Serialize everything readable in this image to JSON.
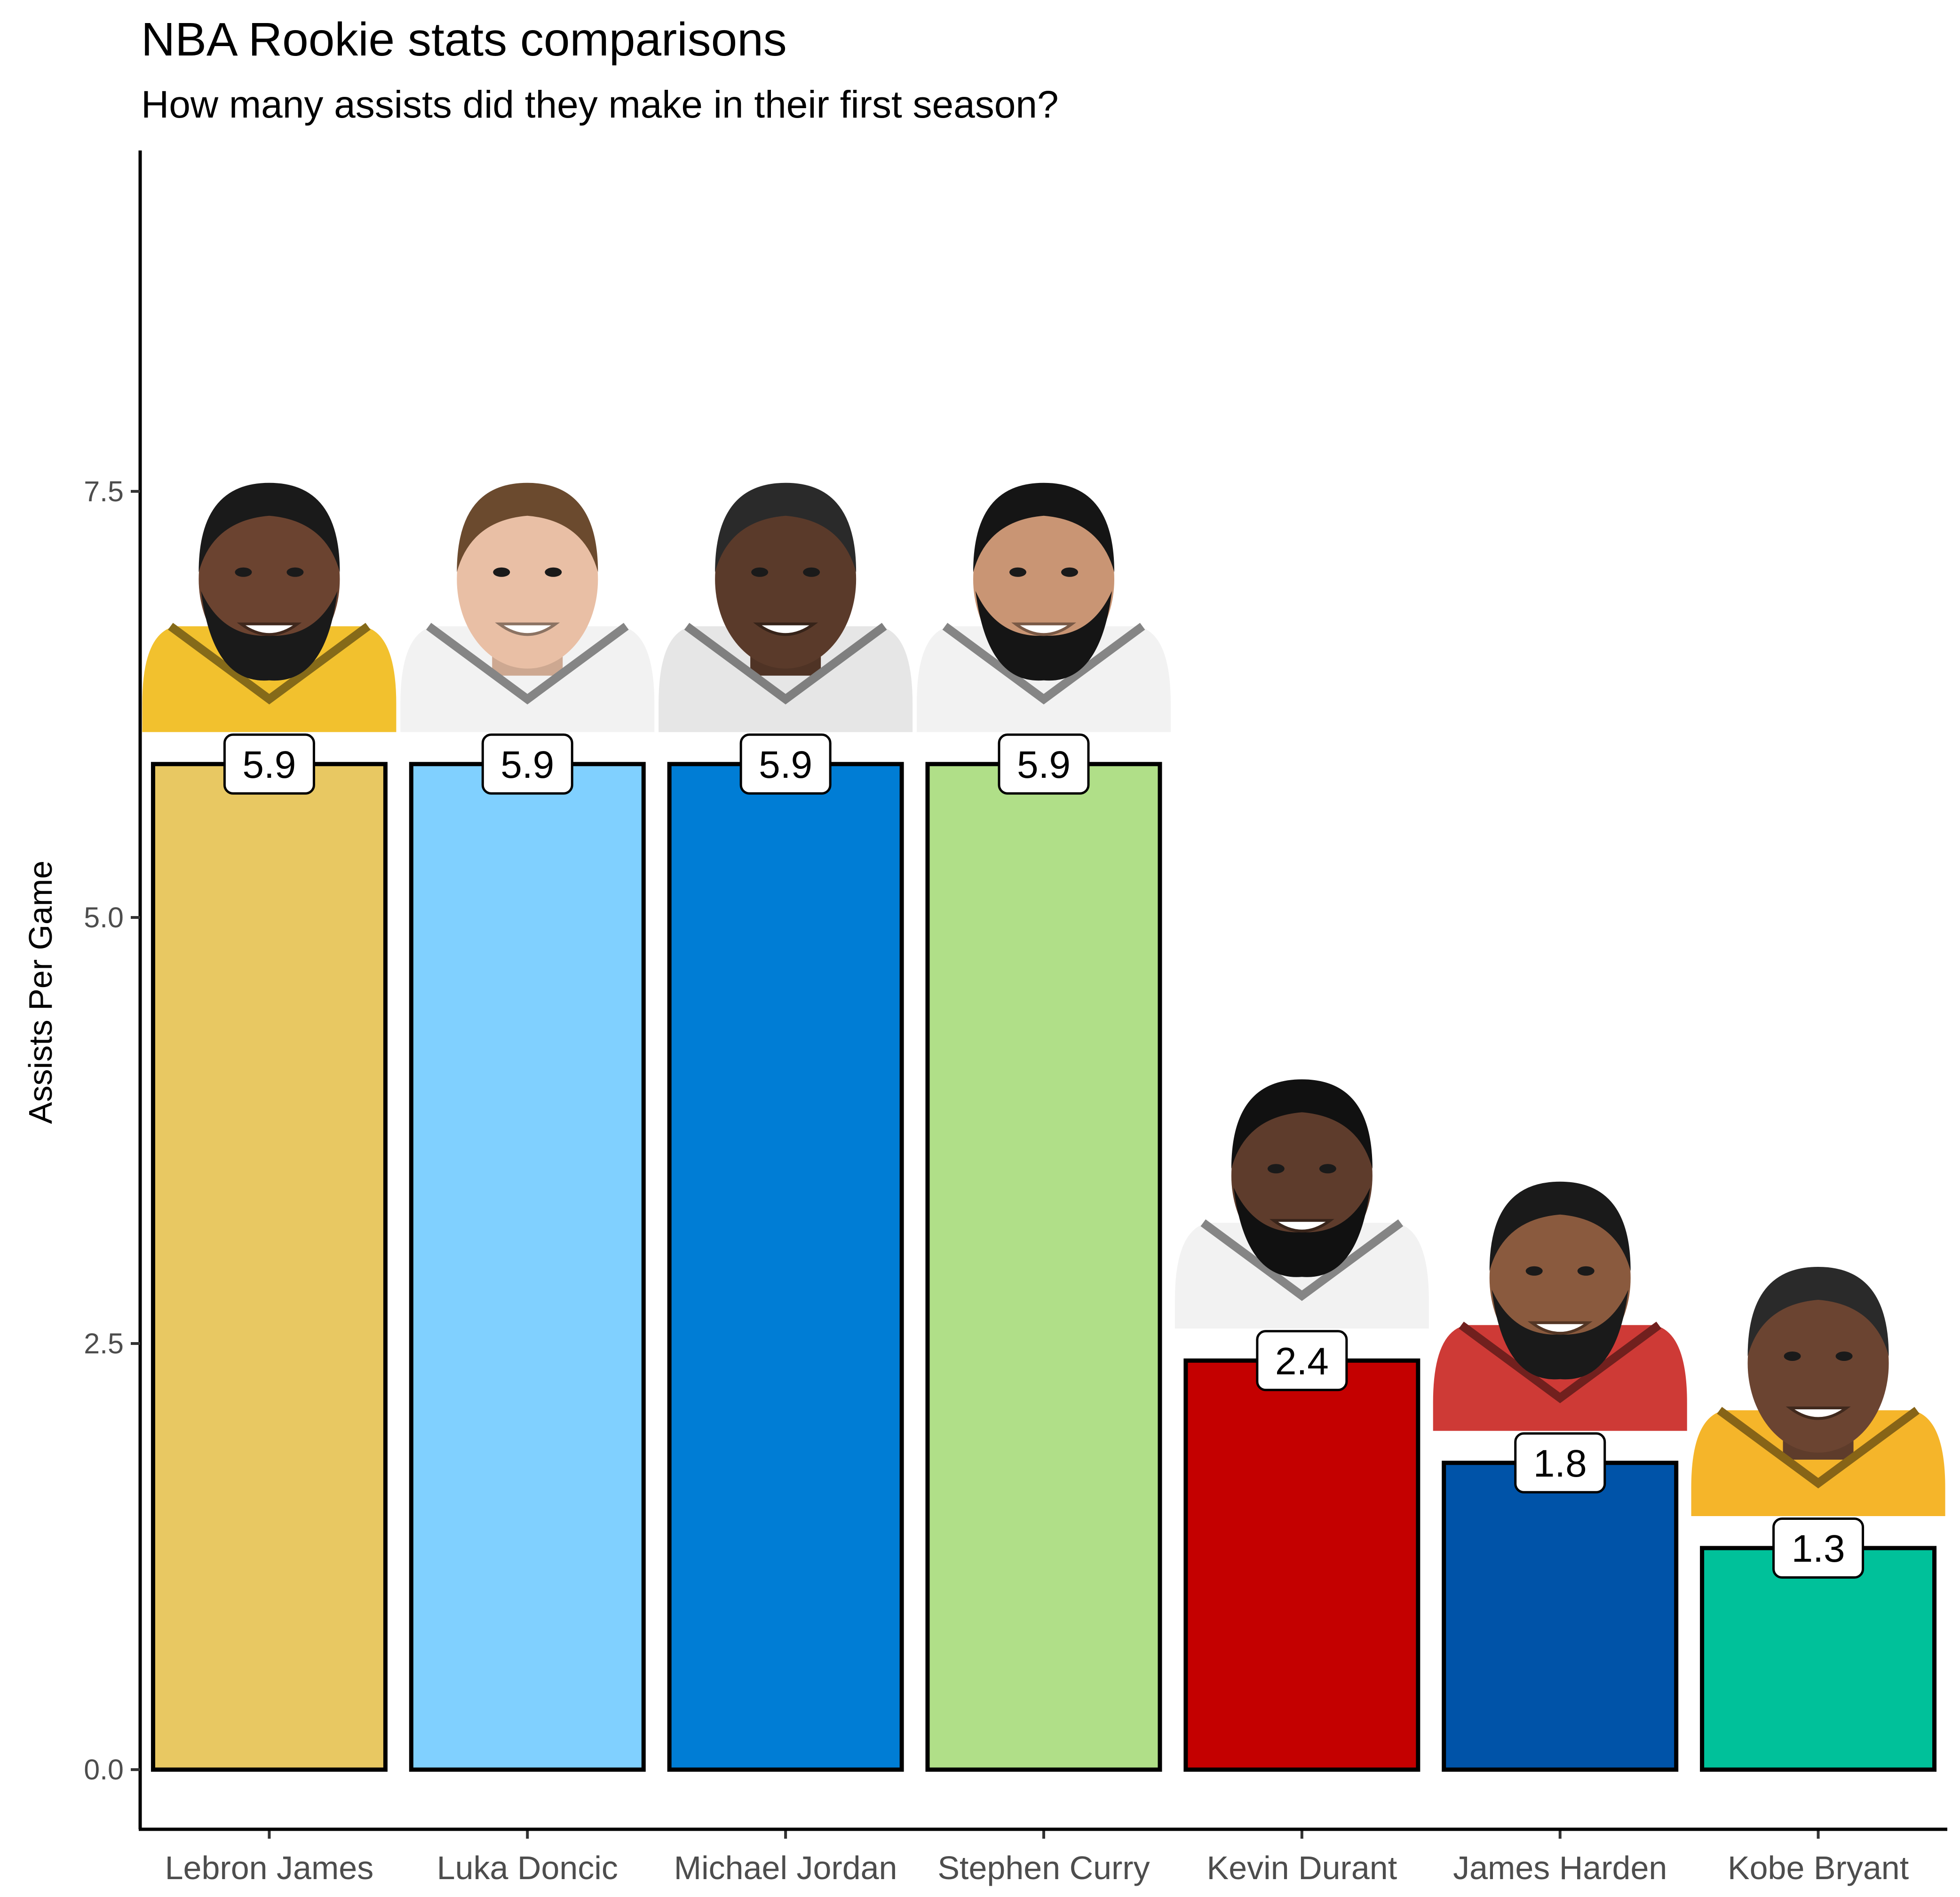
{
  "chart_data": {
    "type": "bar",
    "title": "NBA Rookie stats comparisons",
    "subtitle": "How many assists did they make in their first season?",
    "xlabel": "",
    "ylabel": "Assists Per Game",
    "ylim": [
      -0.35,
      9.5
    ],
    "yticks": [
      0.0,
      2.5,
      5.0,
      7.5
    ],
    "ytick_labels": [
      "0.0",
      "2.5",
      "5.0",
      "7.5"
    ],
    "grid": false,
    "legend": "none",
    "categories": [
      "Lebron James",
      "Luka Doncic",
      "Michael Jordan",
      "Stephen Curry",
      "Kevin Durant",
      "James Harden",
      "Kobe Bryant"
    ],
    "values": [
      5.9,
      5.9,
      5.9,
      5.9,
      2.4,
      1.8,
      1.3
    ],
    "data_labels": [
      "5.9",
      "5.9",
      "5.9",
      "5.9",
      "2.4",
      "1.8",
      "1.3"
    ],
    "colors": [
      "#E8C862",
      "#80D0FF",
      "#007DD5",
      "#B0DF88",
      "#C40000",
      "#0053A8",
      "#00C19A"
    ],
    "portrait_jersey_colors": [
      "#F2C12E",
      "#F2F2F2",
      "#E6E6E6",
      "#F2F2F2",
      "#F2F2F2",
      "#CE3A36",
      "#F5B52A"
    ]
  }
}
